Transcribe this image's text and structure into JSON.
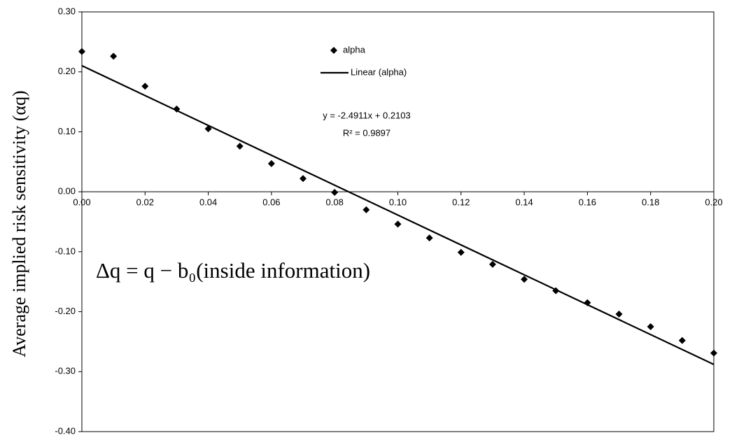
{
  "chart_data": {
    "type": "scatter",
    "y_label": "Average implied risk sensitivity (αq)",
    "annotations": [
      "y = -2.4911x + 0.2103",
      "R² = 0.9897",
      "Δq = q − b₀(inside information)"
    ],
    "series": [
      {
        "name": "alpha",
        "color": "#000000",
        "kind": "points",
        "x": [
          0.0,
          0.01,
          0.02,
          0.03,
          0.04,
          0.05,
          0.06,
          0.07,
          0.08,
          0.09,
          0.1,
          0.11,
          0.12,
          0.13,
          0.14,
          0.15,
          0.16,
          0.17,
          0.18,
          0.19,
          0.2
        ],
        "values": [
          0.234,
          0.226,
          0.176,
          0.138,
          0.105,
          0.076,
          0.047,
          0.022,
          -0.001,
          -0.03,
          -0.054,
          -0.077,
          -0.101,
          -0.121,
          -0.146,
          -0.165,
          -0.185,
          -0.204,
          -0.225,
          -0.248,
          -0.269
        ]
      },
      {
        "name": "Linear (alpha)",
        "color": "#000000",
        "kind": "line",
        "x": [
          0.0,
          0.2
        ],
        "values": [
          0.2103,
          -0.288
        ]
      }
    ],
    "xlim": [
      0,
      0.2
    ],
    "xticks": [
      {
        "value": 0,
        "label": "0.00"
      },
      {
        "value": 0.02,
        "label": "0.02"
      },
      {
        "value": 0.04,
        "label": "0.04"
      },
      {
        "value": 0.06,
        "label": "0.06"
      },
      {
        "value": 0.08,
        "label": "0.08"
      },
      {
        "value": 0.1,
        "label": "0.10"
      },
      {
        "value": 0.12,
        "label": "0.12"
      },
      {
        "value": 0.14,
        "label": "0.14"
      },
      {
        "value": 0.16,
        "label": "0.16"
      },
      {
        "value": 0.18,
        "label": "0.18"
      },
      {
        "value": 0.2,
        "label": "0.20"
      }
    ],
    "ylim": [
      -0.4,
      0.3
    ],
    "yticks": [
      {
        "value": 0.3,
        "label": "0.30"
      },
      {
        "value": 0.2,
        "label": "0.20"
      },
      {
        "value": 0.1,
        "label": "0.10"
      },
      {
        "value": 0,
        "label": "0.00"
      },
      {
        "value": -0.1,
        "label": "-0.10"
      },
      {
        "value": -0.2,
        "label": "-0.20"
      },
      {
        "value": -0.3,
        "label": "-0.30"
      },
      {
        "value": -0.4,
        "label": "-0.40"
      }
    ],
    "grid": false
  }
}
